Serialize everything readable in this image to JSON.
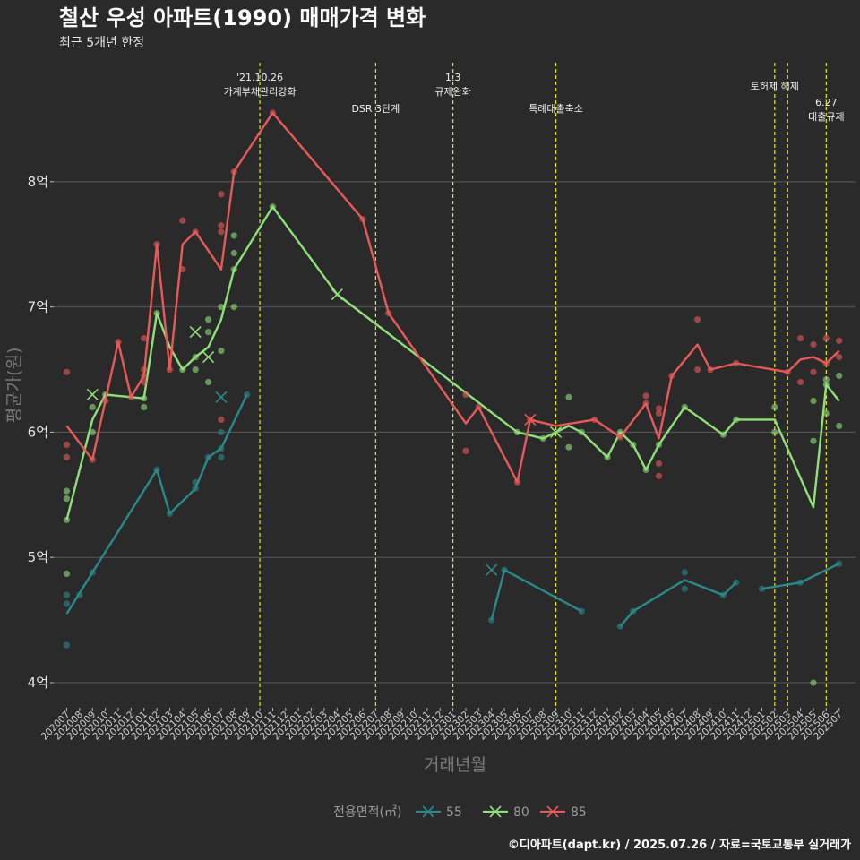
{
  "title": "철산 우성 아파트(1990) 매매가격 변화",
  "subtitle": "최근 5개년 한정",
  "caption": "©디아파트(dapt.kr) / 2025.07.26 / 자료=국토교통부 실거래가",
  "chart_data": {
    "type": "line",
    "xlabel": "거래년월",
    "ylabel": "평균가(원)",
    "ylim": [
      3.8,
      8.95
    ],
    "y_ticks": [
      {
        "value": 4,
        "label": "4억"
      },
      {
        "value": 5,
        "label": "5억"
      },
      {
        "value": 6,
        "label": "6억"
      },
      {
        "value": 7,
        "label": "7억"
      },
      {
        "value": 8,
        "label": "8억"
      }
    ],
    "grid": true,
    "x_categories": [
      "202007",
      "202008",
      "202009",
      "202010",
      "202011",
      "202012",
      "202101",
      "202102",
      "202103",
      "202104",
      "202105",
      "202106",
      "202107",
      "202108",
      "202109",
      "202110",
      "202111",
      "202112",
      "202201",
      "202202",
      "202203",
      "202204",
      "202205",
      "202206",
      "202207",
      "202208",
      "202209",
      "202210",
      "202211",
      "202212",
      "202301",
      "202302",
      "202303",
      "202304",
      "202305",
      "202306",
      "202307",
      "202308",
      "202309",
      "202310",
      "202311",
      "202312",
      "202401",
      "202402",
      "202403",
      "202404",
      "202405",
      "202406",
      "202407",
      "202408",
      "202409",
      "202410",
      "202411",
      "202412",
      "202501",
      "202502",
      "202503",
      "202504",
      "202505",
      "202506",
      "202507"
    ],
    "legend": {
      "title": "전용면적(㎡)",
      "placement": "bottom",
      "entries": [
        {
          "label": "55",
          "color": "#2a8a8a"
        },
        {
          "label": "80",
          "color": "#90e07a"
        },
        {
          "label": "85",
          "color": "#e85a5a"
        }
      ]
    },
    "events": [
      {
        "x": "202110",
        "lines": [
          "'21.10.26",
          "가계부채관리강화"
        ],
        "row": 0
      },
      {
        "x": "202207",
        "lines": [
          "DSR 3단계"
        ],
        "row": 2
      },
      {
        "x": "202301",
        "lines": [
          "1.3",
          "규제완화"
        ],
        "row": 0
      },
      {
        "x": "202309",
        "lines": [
          "특례대출축소"
        ],
        "row": 2
      },
      {
        "x": "202502",
        "lines": [
          "토허제 해제"
        ],
        "row": 1
      },
      {
        "x": "202503",
        "lines": [],
        "row": 1
      },
      {
        "x": "202506",
        "lines": [
          "6.27",
          "대출규제"
        ],
        "row": 3
      }
    ],
    "series": [
      {
        "name": "55",
        "color": "#2a8a8a",
        "segments": [
          [
            [
              "202007",
              4.55
            ],
            [
              "202009",
              4.88
            ],
            [
              "202102",
              5.7
            ],
            [
              "202103",
              5.35
            ],
            [
              "202105",
              5.55
            ],
            [
              "202106",
              5.8
            ],
            [
              "202107",
              5.87
            ],
            [
              "202109",
              6.3
            ]
          ],
          [
            [
              "202304",
              4.5
            ],
            [
              "202305",
              4.9
            ],
            [
              "202311",
              4.57
            ]
          ],
          [
            [
              "202402",
              4.45
            ],
            [
              "202403",
              4.57
            ],
            [
              "202407",
              4.82
            ],
            [
              "202410",
              4.7
            ],
            [
              "202411",
              4.8
            ]
          ],
          [
            [
              "202501",
              4.75
            ],
            [
              "202504",
              4.8
            ],
            [
              "202507",
              4.95
            ]
          ]
        ],
        "points": [
          [
            "202007",
            4.3
          ],
          [
            "202007",
            4.63
          ],
          [
            "202007",
            4.7
          ],
          [
            "202008",
            4.7
          ],
          [
            "202009",
            4.88
          ],
          [
            "202102",
            5.7
          ],
          [
            "202103",
            5.35
          ],
          [
            "202105",
            5.55
          ],
          [
            "202105",
            5.6
          ],
          [
            "202106",
            5.8
          ],
          [
            "202107",
            5.8
          ],
          [
            "202107",
            5.87
          ],
          [
            "202107",
            6.0
          ],
          [
            "202109",
            6.3
          ],
          [
            "202304",
            4.5
          ],
          [
            "202305",
            4.9
          ],
          [
            "202311",
            4.57
          ],
          [
            "202402",
            4.45
          ],
          [
            "202403",
            4.57
          ],
          [
            "202407",
            4.75
          ],
          [
            "202407",
            4.88
          ],
          [
            "202410",
            4.7
          ],
          [
            "202411",
            4.8
          ],
          [
            "202501",
            4.75
          ],
          [
            "202504",
            4.8
          ],
          [
            "202507",
            4.95
          ]
        ],
        "crosses": [
          [
            "202107",
            6.28
          ],
          [
            "202304",
            4.9
          ]
        ]
      },
      {
        "name": "80",
        "color": "#90e07a",
        "segments": [
          [
            [
              "202007",
              5.3
            ],
            [
              "202009",
              6.1
            ],
            [
              "202010",
              6.3
            ],
            [
              "202101",
              6.27
            ],
            [
              "202102",
              6.95
            ],
            [
              "202103",
              6.68
            ],
            [
              "202104",
              6.5
            ],
            [
              "202105",
              6.6
            ],
            [
              "202106",
              6.68
            ],
            [
              "202107",
              6.9
            ],
            [
              "202108",
              7.3
            ],
            [
              "202111",
              7.8
            ],
            [
              "202204",
              7.1
            ],
            [
              "202306",
              6.0
            ],
            [
              "202308",
              5.95
            ],
            [
              "202309",
              6.0
            ],
            [
              "202310",
              6.05
            ],
            [
              "202311",
              6.0
            ],
            [
              "202401",
              5.8
            ],
            [
              "202402",
              6.0
            ],
            [
              "202403",
              5.9
            ],
            [
              "202404",
              5.7
            ],
            [
              "202405",
              5.9
            ],
            [
              "202407",
              6.2
            ],
            [
              "202410",
              5.98
            ],
            [
              "202411",
              6.1
            ],
            [
              "202502",
              6.1
            ],
            [
              "202505",
              5.4
            ],
            [
              "202506",
              6.38
            ],
            [
              "202507",
              6.25
            ]
          ]
        ],
        "points": [
          [
            "202007",
            4.87
          ],
          [
            "202007",
            5.3
          ],
          [
            "202007",
            5.47
          ],
          [
            "202007",
            5.53
          ],
          [
            "202009",
            6.0
          ],
          [
            "202009",
            6.2
          ],
          [
            "202010",
            6.3
          ],
          [
            "202101",
            6.2
          ],
          [
            "202101",
            6.27
          ],
          [
            "202102",
            6.95
          ],
          [
            "202104",
            6.5
          ],
          [
            "202105",
            6.5
          ],
          [
            "202105",
            6.6
          ],
          [
            "202106",
            6.4
          ],
          [
            "202106",
            6.8
          ],
          [
            "202106",
            6.9
          ],
          [
            "202107",
            6.65
          ],
          [
            "202107",
            7.0
          ],
          [
            "202108",
            7.0
          ],
          [
            "202108",
            7.3
          ],
          [
            "202108",
            7.43
          ],
          [
            "202108",
            7.57
          ],
          [
            "202111",
            7.8
          ],
          [
            "202306",
            6.0
          ],
          [
            "202308",
            5.95
          ],
          [
            "202310",
            5.88
          ],
          [
            "202310",
            6.28
          ],
          [
            "202311",
            6.0
          ],
          [
            "202401",
            5.8
          ],
          [
            "202402",
            6.0
          ],
          [
            "202403",
            5.9
          ],
          [
            "202404",
            5.7
          ],
          [
            "202405",
            5.9
          ],
          [
            "202407",
            6.2
          ],
          [
            "202410",
            5.98
          ],
          [
            "202411",
            6.1
          ],
          [
            "202502",
            6.0
          ],
          [
            "202502",
            6.2
          ],
          [
            "202505",
            4.0
          ],
          [
            "202505",
            5.93
          ],
          [
            "202505",
            6.25
          ],
          [
            "202506",
            6.15
          ],
          [
            "202506",
            6.38
          ],
          [
            "202506",
            6.42
          ],
          [
            "202507",
            6.05
          ],
          [
            "202507",
            6.45
          ]
        ],
        "crosses": [
          [
            "202009",
            6.3
          ],
          [
            "202105",
            6.8
          ],
          [
            "202106",
            6.6
          ],
          [
            "202204",
            7.1
          ],
          [
            "202309",
            6.0
          ]
        ]
      },
      {
        "name": "85",
        "color": "#e85a5a",
        "segments": [
          [
            [
              "202007",
              6.05
            ],
            [
              "202009",
              5.78
            ],
            [
              "202010",
              6.25
            ],
            [
              "202011",
              6.72
            ],
            [
              "202012",
              6.28
            ],
            [
              "202101",
              6.45
            ],
            [
              "202102",
              7.5
            ],
            [
              "202103",
              6.5
            ],
            [
              "202104",
              7.5
            ],
            [
              "202105",
              7.6
            ],
            [
              "202107",
              7.3
            ],
            [
              "202108",
              8.08
            ],
            [
              "202111",
              8.55
            ],
            [
              "202206",
              7.7
            ],
            [
              "202208",
              6.95
            ],
            [
              "202302",
              6.07
            ],
            [
              "202303",
              6.2
            ],
            [
              "202306",
              5.6
            ],
            [
              "202307",
              6.1
            ],
            [
              "202309",
              6.05
            ],
            [
              "202312",
              6.1
            ],
            [
              "202402",
              5.96
            ],
            [
              "202404",
              6.23
            ],
            [
              "202405",
              5.95
            ],
            [
              "202406",
              6.45
            ],
            [
              "202408",
              6.7
            ],
            [
              "202409",
              6.5
            ],
            [
              "202411",
              6.55
            ],
            [
              "202503",
              6.48
            ],
            [
              "202504",
              6.58
            ],
            [
              "202505",
              6.6
            ],
            [
              "202506",
              6.55
            ],
            [
              "202507",
              6.65
            ]
          ]
        ],
        "points": [
          [
            "202007",
            5.8
          ],
          [
            "202007",
            5.9
          ],
          [
            "202007",
            6.48
          ],
          [
            "202009",
            5.78
          ],
          [
            "202010",
            6.25
          ],
          [
            "202011",
            6.72
          ],
          [
            "202012",
            6.28
          ],
          [
            "202101",
            6.4
          ],
          [
            "202101",
            6.45
          ],
          [
            "202101",
            6.5
          ],
          [
            "202101",
            6.75
          ],
          [
            "202102",
            7.5
          ],
          [
            "202103",
            6.5
          ],
          [
            "202104",
            7.3
          ],
          [
            "202104",
            7.69
          ],
          [
            "202105",
            7.6
          ],
          [
            "202107",
            6.1
          ],
          [
            "202107",
            7.6
          ],
          [
            "202107",
            7.65
          ],
          [
            "202107",
            7.9
          ],
          [
            "202108",
            8.08
          ],
          [
            "202111",
            8.55
          ],
          [
            "202206",
            7.7
          ],
          [
            "202208",
            6.95
          ],
          [
            "202302",
            5.85
          ],
          [
            "202302",
            6.3
          ],
          [
            "202303",
            6.2
          ],
          [
            "202306",
            5.6
          ],
          [
            "202307",
            6.1
          ],
          [
            "202312",
            6.1
          ],
          [
            "202402",
            5.96
          ],
          [
            "202404",
            6.23
          ],
          [
            "202404",
            6.29
          ],
          [
            "202405",
            5.65
          ],
          [
            "202405",
            5.75
          ],
          [
            "202405",
            6.15
          ],
          [
            "202405",
            6.19
          ],
          [
            "202406",
            6.45
          ],
          [
            "202408",
            6.5
          ],
          [
            "202408",
            6.9
          ],
          [
            "202409",
            6.5
          ],
          [
            "202411",
            6.55
          ],
          [
            "202503",
            6.48
          ],
          [
            "202504",
            6.4
          ],
          [
            "202504",
            6.75
          ],
          [
            "202505",
            6.48
          ],
          [
            "202505",
            6.7
          ],
          [
            "202506",
            6.55
          ],
          [
            "202506",
            6.75
          ],
          [
            "202507",
            6.6
          ],
          [
            "202507",
            6.73
          ]
        ],
        "crosses": [
          [
            "202307",
            6.1
          ]
        ]
      }
    ]
  }
}
